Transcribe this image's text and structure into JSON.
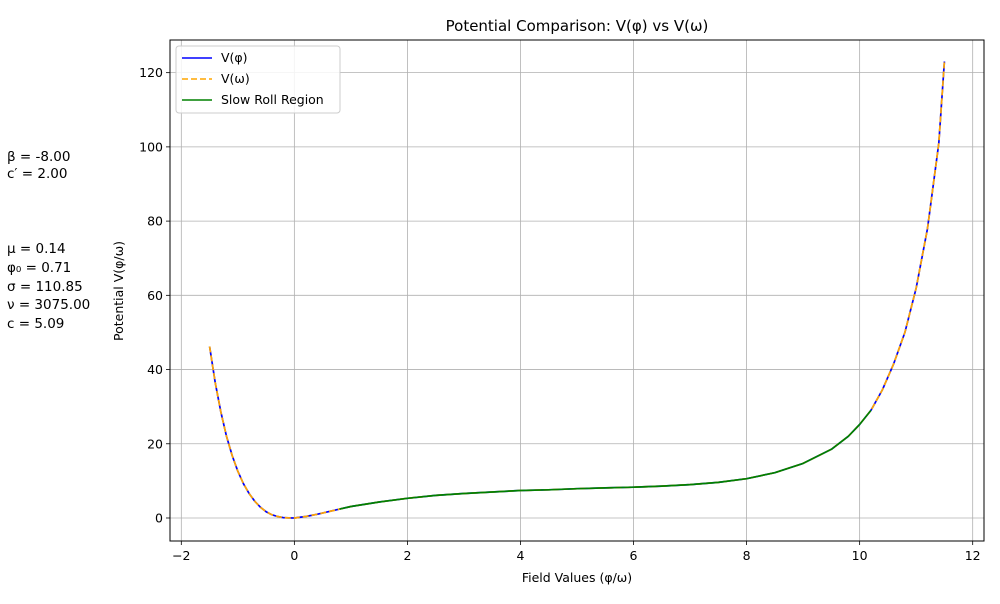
{
  "chart_data": {
    "type": "line",
    "title": "Potential Comparison: V(φ) vs V(ω)",
    "xlabel": "Field Values (φ/ω)",
    "ylabel": "Potential V(φ/ω)",
    "xlim": [
      -2.2,
      12.2
    ],
    "ylim": [
      -6.2,
      128.8
    ],
    "xticks": [
      -2,
      0,
      2,
      4,
      6,
      8,
      10,
      12
    ],
    "yticks": [
      0,
      20,
      40,
      60,
      80,
      100,
      120
    ],
    "grid": true,
    "legend_position": "upper-left",
    "x": [
      -1.5,
      -1.4,
      -1.3,
      -1.2,
      -1.1,
      -1.0,
      -0.9,
      -0.8,
      -0.7,
      -0.6,
      -0.5,
      -0.4,
      -0.3,
      -0.2,
      -0.1,
      0.0,
      0.2,
      0.4,
      0.6,
      0.8,
      1.0,
      1.5,
      2.0,
      2.5,
      3.0,
      3.5,
      4.0,
      4.5,
      5.0,
      5.5,
      6.0,
      6.5,
      7.0,
      7.5,
      8.0,
      8.5,
      9.0,
      9.5,
      9.8,
      10.0,
      10.2,
      10.4,
      10.6,
      10.8,
      11.0,
      11.2,
      11.4,
      11.5
    ],
    "series": [
      {
        "name": "V(φ)",
        "color": "#0000ff",
        "style": "solid",
        "values": [
          46.2,
          36.5,
          28.5,
          22.0,
          16.8,
          12.6,
          9.2,
          6.6,
          4.5,
          2.9,
          1.7,
          0.9,
          0.4,
          0.1,
          0.02,
          0.0,
          0.4,
          1.0,
          1.7,
          2.4,
          3.1,
          4.3,
          5.3,
          6.1,
          6.6,
          7.0,
          7.4,
          7.6,
          7.9,
          8.1,
          8.3,
          8.6,
          9.0,
          9.6,
          10.6,
          12.2,
          14.7,
          18.5,
          22.0,
          25.2,
          29.0,
          34.5,
          41.5,
          50.0,
          62.0,
          78.0,
          101.0,
          123.0
        ]
      },
      {
        "name": "V(ω)",
        "color": "#ffa500",
        "style": "dashed",
        "values": [
          46.2,
          36.5,
          28.5,
          22.0,
          16.8,
          12.6,
          9.2,
          6.6,
          4.5,
          2.9,
          1.7,
          0.9,
          0.4,
          0.1,
          0.02,
          0.0,
          0.4,
          1.0,
          1.7,
          2.4,
          3.1,
          4.3,
          5.3,
          6.1,
          6.6,
          7.0,
          7.4,
          7.6,
          7.9,
          8.1,
          8.3,
          8.6,
          9.0,
          9.6,
          10.6,
          12.2,
          14.7,
          18.5,
          22.0,
          25.2,
          29.0,
          34.5,
          41.5,
          50.0,
          62.0,
          78.0,
          101.0,
          123.0
        ]
      },
      {
        "name": "Slow Roll Region",
        "color": "#008000",
        "style": "solid",
        "x": [
          0.8,
          1.0,
          1.5,
          2.0,
          2.5,
          3.0,
          3.5,
          4.0,
          4.5,
          5.0,
          5.5,
          6.0,
          6.5,
          7.0,
          7.5,
          8.0,
          8.5,
          9.0,
          9.5,
          9.8,
          10.0,
          10.2
        ],
        "values": [
          2.4,
          3.1,
          4.3,
          5.3,
          6.1,
          6.6,
          7.0,
          7.4,
          7.6,
          7.9,
          8.1,
          8.3,
          8.6,
          9.0,
          9.6,
          10.6,
          12.2,
          14.7,
          18.5,
          22.0,
          25.2,
          29.0
        ]
      }
    ]
  },
  "params": {
    "beta": "β = -8.00",
    "c_prime": "c′ = 2.00",
    "mu": "μ = 0.14",
    "phi0": "φ₀ = 0.71",
    "sigma": "σ = 110.85",
    "nu": "ν = 3075.00",
    "c": "c = 5.09"
  }
}
